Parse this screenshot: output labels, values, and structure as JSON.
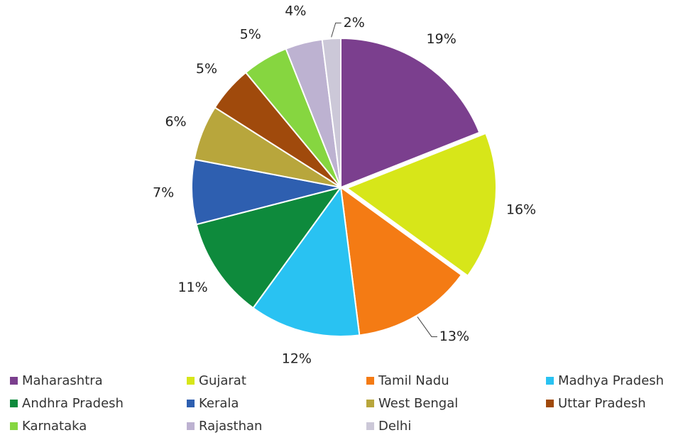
{
  "chart_data": {
    "type": "pie",
    "title": "",
    "slices": [
      {
        "name": "Maharashtra",
        "value": 19,
        "label": "19%",
        "color": "#7B3F8E"
      },
      {
        "name": "Gujarat",
        "value": 16,
        "label": "16%",
        "color": "#D7E619"
      },
      {
        "name": "Tamil Nadu",
        "value": 13,
        "label": "13%",
        "color": "#F47B14"
      },
      {
        "name": "Madhya Pradesh",
        "value": 12,
        "label": "12%",
        "color": "#29C2F2"
      },
      {
        "name": "Andhra Pradesh",
        "value": 11,
        "label": "11%",
        "color": "#0E8A3C"
      },
      {
        "name": "Kerala",
        "value": 7,
        "label": "7%",
        "color": "#2E5FB0"
      },
      {
        "name": "West Bengal",
        "value": 6,
        "label": "6%",
        "color": "#B8A63C"
      },
      {
        "name": "Uttar Pradesh",
        "value": 5,
        "label": "5%",
        "color": "#A04A0C"
      },
      {
        "name": "Karnataka",
        "value": 5,
        "label": "5%",
        "color": "#86D640"
      },
      {
        "name": "Rajasthan",
        "value": 4,
        "label": "4%",
        "color": "#BDB2D1"
      },
      {
        "name": "Delhi",
        "value": 2,
        "label": "2%",
        "color": "#CCC8D8"
      }
    ],
    "legend_position": "bottom",
    "exploded_slices": [
      "Gujarat"
    ]
  }
}
